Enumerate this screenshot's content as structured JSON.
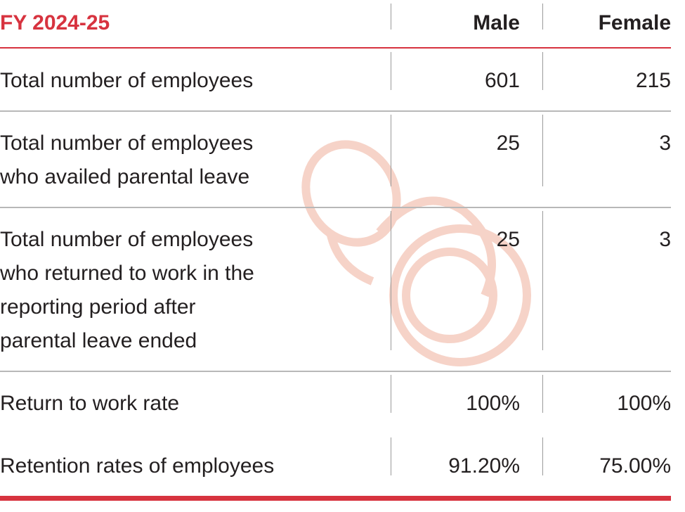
{
  "table": {
    "header": [
      "FY 2024-25",
      "Male",
      "Female"
    ],
    "rows": [
      [
        [
          "Total number of employees"
        ],
        "601",
        "215"
      ],
      [
        [
          "Total number of employees",
          "who availed parental leave"
        ],
        "25",
        "3"
      ],
      [
        [
          "Total number of employees",
          "who returned to work in the",
          "reporting period after",
          "parental leave ended"
        ],
        "25",
        "3"
      ],
      [
        [
          "Return to work rate"
        ],
        "100%",
        "100%"
      ],
      [
        [
          "Retention rates of employees"
        ],
        "91.20%",
        "75.00%"
      ]
    ]
  }
}
